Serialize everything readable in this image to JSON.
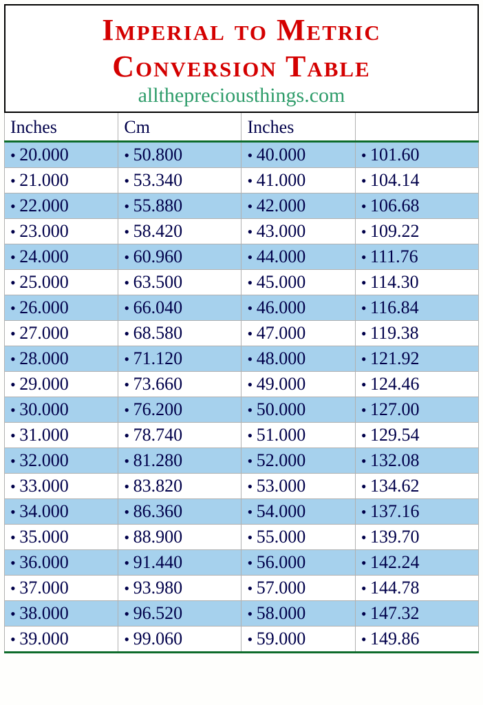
{
  "header": {
    "title_line1": "Imperial to Metric",
    "title_line2": "Conversion Table",
    "subtitle": "allthepreciousthings.com"
  },
  "table": {
    "columns": [
      "Inches",
      "Cm",
      "Inches",
      ""
    ],
    "colors": {
      "title_color": "#d40000",
      "subtitle_color": "#2e9c6a",
      "text_color": "#00004a",
      "rule_color": "#0d6b2a",
      "border_color": "#b0b0b0",
      "odd_row_bg": "#a6d1ed",
      "even_row_bg": "#ffffff"
    },
    "font": {
      "title_size_pt": 44,
      "body_size_pt": 26,
      "family": "Times New Roman"
    },
    "rows": [
      [
        "20.000",
        "50.800",
        "40.000",
        "101.60"
      ],
      [
        "21.000",
        "53.340",
        "41.000",
        "104.14"
      ],
      [
        "22.000",
        "55.880",
        "42.000",
        "106.68"
      ],
      [
        "23.000",
        "58.420",
        "43.000",
        "109.22"
      ],
      [
        "24.000",
        "60.960",
        "44.000",
        "111.76"
      ],
      [
        "25.000",
        "63.500",
        "45.000",
        "114.30"
      ],
      [
        "26.000",
        "66.040",
        "46.000",
        "116.84"
      ],
      [
        "27.000",
        "68.580",
        "47.000",
        "119.38"
      ],
      [
        "28.000",
        "71.120",
        "48.000",
        "121.92"
      ],
      [
        "29.000",
        "73.660",
        "49.000",
        "124.46"
      ],
      [
        "30.000",
        "76.200",
        "50.000",
        "127.00"
      ],
      [
        "31.000",
        "78.740",
        "51.000",
        "129.54"
      ],
      [
        "32.000",
        "81.280",
        "52.000",
        "132.08"
      ],
      [
        "33.000",
        "83.820",
        "53.000",
        "134.62"
      ],
      [
        "34.000",
        "86.360",
        "54.000",
        "137.16"
      ],
      [
        "35.000",
        "88.900",
        "55.000",
        "139.70"
      ],
      [
        "36.000",
        "91.440",
        "56.000",
        "142.24"
      ],
      [
        "37.000",
        "93.980",
        "57.000",
        "144.78"
      ],
      [
        "38.000",
        "96.520",
        "58.000",
        "147.32"
      ],
      [
        "39.000",
        "99.060",
        "59.000",
        "149.86"
      ]
    ]
  }
}
